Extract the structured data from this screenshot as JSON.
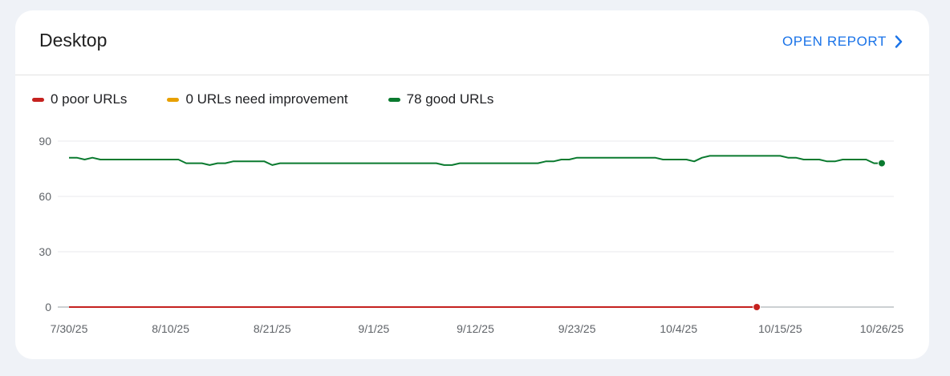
{
  "card": {
    "title": "Desktop",
    "action_label": "OPEN REPORT",
    "action_icon": "chevron-right-icon"
  },
  "colors": {
    "poor": "#c5221f",
    "needs_improvement": "#e8a000",
    "good": "#0a7a2f",
    "link": "#1a73e8"
  },
  "legend": [
    {
      "label": "0 poor URLs",
      "color": "#c5221f"
    },
    {
      "label": "0 URLs need improvement",
      "color": "#e8a000"
    },
    {
      "label": "78 good URLs",
      "color": "#0a7a2f"
    }
  ],
  "chart_data": {
    "type": "line",
    "x_start": "7/30/25",
    "x_ticks": [
      "7/30/25",
      "8/10/25",
      "8/21/25",
      "9/1/25",
      "9/12/25",
      "9/23/25",
      "10/4/25",
      "10/15/25",
      "10/26/25"
    ],
    "y_ticks": [
      "0",
      "30",
      "60",
      "90"
    ],
    "ylim": [
      0,
      90
    ],
    "grid": true,
    "legend_position": "top-left",
    "series": [
      {
        "name": "0 poor URLs",
        "color": "#c5221f",
        "values": [
          0,
          0,
          0,
          0,
          0,
          0,
          0,
          0,
          0,
          0,
          0,
          0,
          0,
          0,
          0,
          0,
          0,
          0,
          0,
          0,
          0,
          0,
          0,
          0,
          0,
          0,
          0,
          0,
          0,
          0,
          0,
          0,
          0,
          0,
          0,
          0,
          0,
          0,
          0,
          0,
          0,
          0,
          0,
          0,
          0,
          0,
          0,
          0,
          0,
          0,
          0,
          0,
          0,
          0,
          0,
          0,
          0,
          0,
          0,
          0,
          0,
          0,
          0,
          0,
          0,
          0,
          0,
          0,
          0,
          0,
          0,
          0,
          0,
          0,
          0,
          0,
          0,
          0,
          0,
          0,
          0,
          0,
          0,
          0,
          0,
          0,
          0,
          0,
          0
        ],
        "end_marker": true
      },
      {
        "name": "78 good URLs",
        "color": "#0a7a2f",
        "values": [
          81,
          81,
          80,
          81,
          80,
          80,
          80,
          80,
          80,
          80,
          80,
          80,
          80,
          80,
          80,
          78,
          78,
          78,
          77,
          78,
          78,
          79,
          79,
          79,
          79,
          79,
          77,
          78,
          78,
          78,
          78,
          78,
          78,
          78,
          78,
          78,
          78,
          78,
          78,
          78,
          78,
          78,
          78,
          78,
          78,
          78,
          78,
          78,
          77,
          77,
          78,
          78,
          78,
          78,
          78,
          78,
          78,
          78,
          78,
          78,
          78,
          79,
          79,
          80,
          80,
          81,
          81,
          81,
          81,
          81,
          81,
          81,
          81,
          81,
          81,
          81,
          80,
          80,
          80,
          80,
          79,
          81,
          82,
          82,
          82,
          82,
          82,
          82,
          82,
          82,
          82,
          82,
          81,
          81,
          80,
          80,
          80,
          79,
          79,
          80,
          80,
          80,
          80,
          78,
          78
        ],
        "end_marker": true
      }
    ]
  }
}
